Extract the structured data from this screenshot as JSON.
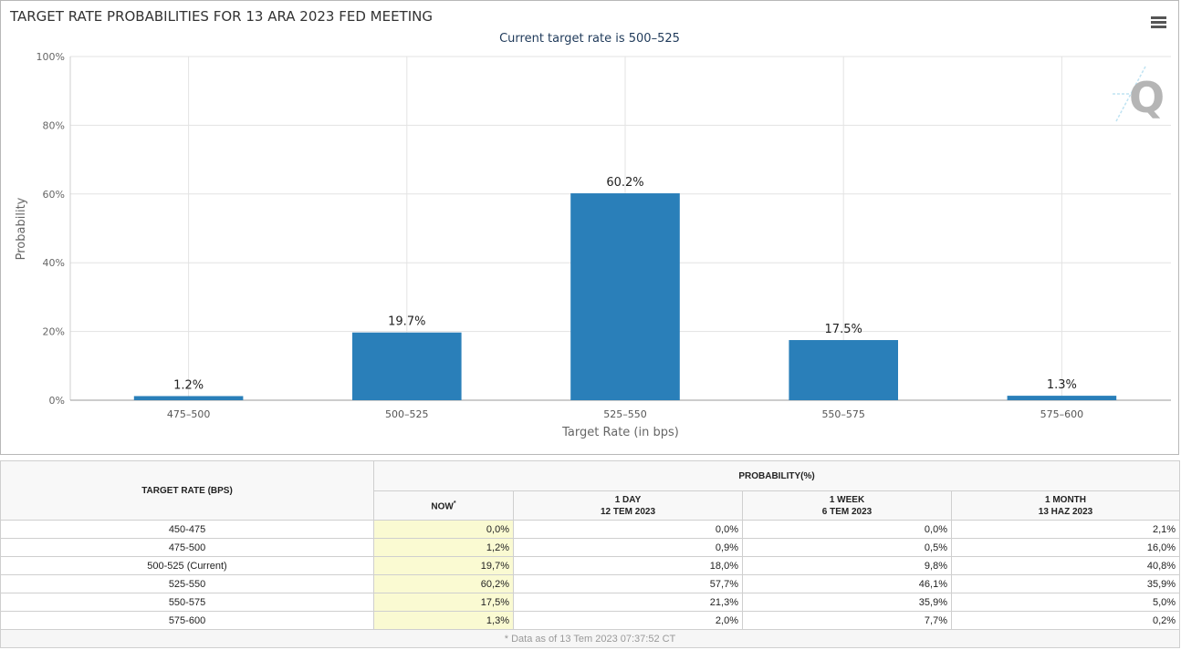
{
  "chart_data": {
    "type": "bar",
    "title": "TARGET RATE PROBABILITIES FOR 13 ARA 2023 FED MEETING",
    "subtitle": "Current target rate is 500–525",
    "xlabel": "Target Rate (in bps)",
    "ylabel": "Probability",
    "categories": [
      "475–500",
      "500–525",
      "525–550",
      "550–575",
      "575–600"
    ],
    "values": [
      1.2,
      19.7,
      60.2,
      17.5,
      1.3
    ],
    "data_labels": [
      "1.2%",
      "19.7%",
      "60.2%",
      "17.5%",
      "1.3%"
    ],
    "ylim": [
      0,
      100
    ],
    "yticks": [
      "0%",
      "20%",
      "40%",
      "60%",
      "80%",
      "100%"
    ],
    "grid": true,
    "legend": "none",
    "bar_color": "#2a7fb9"
  },
  "menu_icon": "hamburger-menu-icon",
  "watermark_icon": "quikstrike-q-logo",
  "table": {
    "target_rate_header": "TARGET RATE (BPS)",
    "probability_header": "PROBABILITY(%)",
    "columns": [
      {
        "line1": "NOW",
        "line2": "",
        "sup": "*"
      },
      {
        "line1": "1 DAY",
        "line2": "12 TEM 2023",
        "sup": ""
      },
      {
        "line1": "1 WEEK",
        "line2": "6 TEM 2023",
        "sup": ""
      },
      {
        "line1": "1 MONTH",
        "line2": "13 HAZ 2023",
        "sup": ""
      }
    ],
    "rows": [
      {
        "rate": "450-475",
        "values": [
          "0,0%",
          "0,0%",
          "0,0%",
          "2,1%"
        ]
      },
      {
        "rate": "475-500",
        "values": [
          "1,2%",
          "0,9%",
          "0,5%",
          "16,0%"
        ]
      },
      {
        "rate": "500-525 (Current)",
        "values": [
          "19,7%",
          "18,0%",
          "9,8%",
          "40,8%"
        ]
      },
      {
        "rate": "525-550",
        "values": [
          "60,2%",
          "57,7%",
          "46,1%",
          "35,9%"
        ]
      },
      {
        "rate": "550-575",
        "values": [
          "17,5%",
          "21,3%",
          "35,9%",
          "5,0%"
        ]
      },
      {
        "rate": "575-600",
        "values": [
          "1,3%",
          "2,0%",
          "7,7%",
          "0,2%"
        ]
      }
    ],
    "footnote": "* Data as of 13 Tem 2023 07:37:52 CT"
  }
}
